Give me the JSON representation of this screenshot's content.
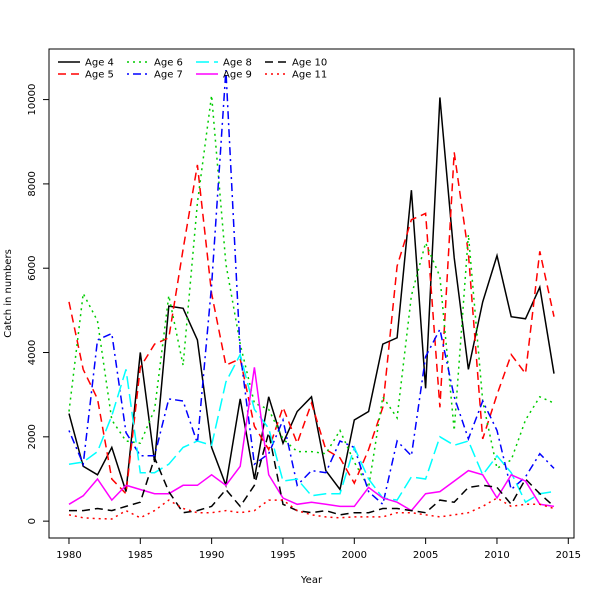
{
  "chart_data": {
    "type": "line",
    "title": "",
    "xlabel": "Year",
    "ylabel": "Catch in numbers",
    "xlim": [
      1978.6,
      2015.4
    ],
    "ylim": [
      -400,
      11200
    ],
    "x_ticks": [
      1980,
      1985,
      1990,
      1995,
      2000,
      2005,
      2010,
      2015
    ],
    "y_ticks": [
      0,
      2000,
      4000,
      6000,
      8000,
      10000
    ],
    "grid": false,
    "legend_position": "top-left",
    "x": [
      1980,
      1981,
      1982,
      1983,
      1984,
      1985,
      1986,
      1987,
      1988,
      1989,
      1990,
      1991,
      1992,
      1993,
      1994,
      1995,
      1996,
      1997,
      1998,
      1999,
      2000,
      2001,
      2002,
      2003,
      2004,
      2005,
      2006,
      2007,
      2008,
      2009,
      2010,
      2011,
      2012,
      2013,
      2014
    ],
    "series": [
      {
        "name": "Age 4",
        "color": "#000000",
        "dash": "solid",
        "values": [
          2550,
          1300,
          1100,
          1750,
          700,
          4000,
          1400,
          5100,
          5050,
          4300,
          1750,
          850,
          2900,
          1000,
          2950,
          1850,
          2600,
          2950,
          1200,
          750,
          2400,
          2600,
          4200,
          4350,
          7850,
          3150,
          10050,
          6250,
          3600,
          5200,
          6300,
          4850,
          4800,
          5550,
          3500
        ]
      },
      {
        "name": "Age 5",
        "color": "#ff0000",
        "dash": "dashed",
        "values": [
          5200,
          3600,
          2900,
          1000,
          650,
          3650,
          4200,
          4350,
          6450,
          8450,
          5400,
          3700,
          3850,
          2250,
          1700,
          2700,
          1850,
          2800,
          1700,
          1500,
          900,
          1700,
          2700,
          6050,
          7150,
          7300,
          2700,
          8750,
          6350,
          1950,
          3000,
          3950,
          3500,
          6400,
          4850
        ]
      },
      {
        "name": "Age 6",
        "color": "#00cc00",
        "dash": "dotted",
        "values": [
          2600,
          5400,
          4750,
          2400,
          1900,
          1850,
          2650,
          5350,
          3700,
          7550,
          10100,
          6100,
          4200,
          2800,
          2650,
          1950,
          1650,
          1650,
          1600,
          2150,
          1400,
          800,
          2950,
          2450,
          5350,
          6600,
          5800,
          2150,
          6800,
          2850,
          1250,
          1450,
          2400,
          2950,
          2800
        ]
      },
      {
        "name": "Age 7",
        "color": "#0000ff",
        "dash": "dotdash",
        "values": [
          2150,
          1350,
          4300,
          4450,
          2100,
          1550,
          1550,
          2900,
          2850,
          1850,
          5600,
          10700,
          4000,
          1350,
          1600,
          2400,
          850,
          1200,
          1150,
          1900,
          1750,
          700,
          400,
          1900,
          1550,
          3900,
          4550,
          2950,
          1950,
          2850,
          2150,
          750,
          1050,
          1600,
          1250
        ]
      },
      {
        "name": "Age 8",
        "color": "#00ffff",
        "dash": "longdash",
        "values": [
          1350,
          1400,
          1650,
          2500,
          3600,
          1150,
          1150,
          1350,
          1750,
          1900,
          1800,
          3300,
          3950,
          2650,
          2200,
          950,
          1000,
          600,
          650,
          650,
          1750,
          1000,
          550,
          500,
          1050,
          1000,
          2000,
          1800,
          1900,
          1100,
          1550,
          1150,
          450,
          650,
          700
        ]
      },
      {
        "name": "Age 9",
        "color": "#ff00ff",
        "dash": "solid",
        "values": [
          400,
          600,
          1000,
          500,
          850,
          750,
          650,
          650,
          850,
          850,
          1100,
          850,
          1300,
          3650,
          1100,
          550,
          400,
          450,
          400,
          350,
          350,
          800,
          550,
          450,
          250,
          650,
          700,
          950,
          1200,
          1100,
          550,
          1100,
          950,
          400,
          350
        ]
      },
      {
        "name": "Age 10",
        "color": "#000000",
        "dash": "dashed",
        "values": [
          250,
          250,
          300,
          250,
          350,
          450,
          1500,
          700,
          200,
          250,
          350,
          750,
          350,
          850,
          2100,
          400,
          250,
          200,
          250,
          150,
          200,
          200,
          300,
          300,
          250,
          200,
          500,
          450,
          800,
          850,
          800,
          400,
          1000,
          650,
          350
        ]
      },
      {
        "name": "Age 11",
        "color": "#ff0000",
        "dash": "dotted",
        "values": [
          150,
          80,
          60,
          50,
          250,
          80,
          250,
          500,
          300,
          200,
          200,
          250,
          200,
          250,
          500,
          500,
          250,
          150,
          100,
          80,
          100,
          100,
          100,
          200,
          200,
          150,
          100,
          150,
          200,
          350,
          550,
          350,
          400,
          400,
          300
        ]
      }
    ]
  }
}
